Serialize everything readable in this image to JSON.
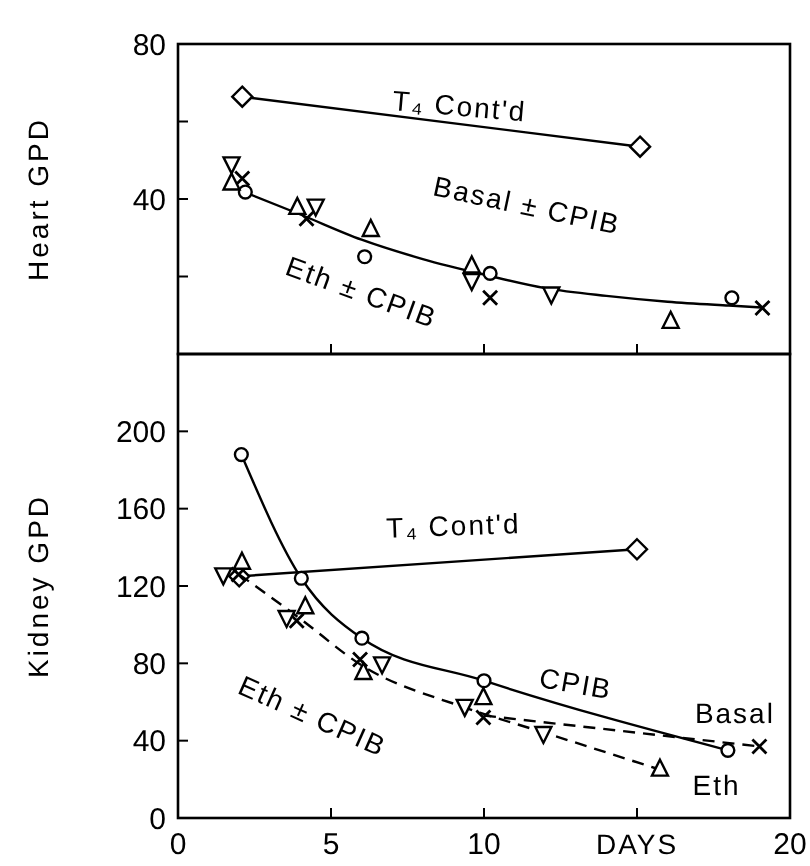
{
  "chart_data": [
    {
      "type": "line",
      "ylabel": "Heart GPD",
      "xlim": [
        0,
        20
      ],
      "xticks": [
        {
          "value": 0,
          "label": null
        },
        {
          "value": 5,
          "label": null
        },
        {
          "value": 10,
          "label": null
        },
        {
          "value": 15,
          "label": null
        },
        {
          "value": 20,
          "label": null
        }
      ],
      "ylim": [
        0,
        80
      ],
      "yticks": [
        {
          "value": 20,
          "label": null
        },
        40,
        {
          "value": 60,
          "label": null
        },
        80
      ],
      "tick_labels": "y",
      "grid": false,
      "series": [
        {
          "marker": "diamond",
          "line_style": "solid",
          "color": "#000000",
          "x": [
            2.1,
            15.1
          ],
          "values": [
            66.4,
            53.5
          ]
        },
        {
          "marker": "none",
          "line_style": "solid",
          "color": "#000000",
          "x": [
            2.1,
            4,
            6,
            8,
            10,
            12,
            14,
            16,
            18,
            19.1
          ],
          "values": [
            42,
            36,
            29.5,
            24.5,
            20.5,
            17,
            15,
            13.5,
            12.5,
            12
          ]
        },
        {
          "type": "scatter",
          "marker": "circle",
          "color": "#000000",
          "x": [
            2.2,
            6.1,
            10.2,
            18.1
          ],
          "values": [
            41.8,
            25.1,
            20.8,
            14.5
          ]
        },
        {
          "type": "scatter",
          "marker": "cross",
          "color": "#000000",
          "x": [
            2.1,
            4.2,
            10.2,
            19.1
          ],
          "values": [
            45.3,
            34.9,
            14.5,
            11.9
          ]
        },
        {
          "type": "scatter",
          "marker": "triangle",
          "color": "#000000",
          "x": [
            1.75,
            3.9,
            6.3,
            9.6,
            16.1
          ],
          "values": [
            44,
            37.7,
            32,
            22.6,
            8.3
          ]
        },
        {
          "type": "scatter",
          "marker": "triangle-down",
          "color": "#000000",
          "x": [
            1.75,
            4.5,
            9.6,
            12.2
          ],
          "values": [
            49.2,
            38.3,
            19.1,
            15.6
          ]
        }
      ],
      "annotations": [
        "T₄ Cont'd",
        "Basal ± CPIB",
        "Eth ± CPIB"
      ]
    },
    {
      "type": "line",
      "ylabel": "Kidney GPD",
      "xlabel": "DAYS",
      "xlim": [
        0,
        20
      ],
      "xticks": [
        0,
        5,
        10,
        {
          "value": 15,
          "label": null
        },
        20
      ],
      "ylim": [
        0,
        240
      ],
      "yticks": [
        0,
        40,
        80,
        120,
        160,
        200
      ],
      "grid": false,
      "series": [
        {
          "marker": "diamond",
          "line_style": "solid",
          "color": "#000000",
          "x": [
            2,
            15
          ],
          "values": [
            125,
            139
          ]
        },
        {
          "marker": "circle",
          "line_style": "solid",
          "color": "#000000",
          "x": [
            2.07,
            4.03,
            6.01,
            10,
            17.97
          ],
          "values": [
            188,
            124,
            93,
            71,
            35
          ]
        },
        {
          "marker": "none",
          "line_style": "dashed",
          "color": "#000000",
          "x": [
            2,
            4,
            6,
            9.4,
            12,
            15.75
          ],
          "values": [
            126,
            103,
            79,
            57,
            44,
            25
          ]
        },
        {
          "marker": "none",
          "line_style": "dashed",
          "color": "#000000",
          "x": [
            10,
            19
          ],
          "values": [
            53,
            37
          ]
        },
        {
          "type": "scatter",
          "marker": "cross",
          "color": "#000000",
          "x": [
            1.98,
            3.88,
            5.95,
            9.98,
            19
          ],
          "values": [
            126,
            102,
            82,
            52,
            37
          ]
        },
        {
          "type": "scatter",
          "marker": "triangle",
          "color": "#000000",
          "x": [
            2.09,
            4.16,
            6.06,
            9.98,
            15.75
          ],
          "values": [
            132,
            109,
            75,
            62,
            25
          ]
        },
        {
          "type": "scatter",
          "marker": "triangle-down",
          "color": "#000000",
          "x": [
            1.48,
            3.55,
            6.67,
            9.37,
            11.94
          ],
          "values": [
            126,
            104,
            80,
            58,
            44
          ]
        }
      ],
      "annotations": [
        "T₄ Cont'd",
        "CPIB",
        "Basal",
        "Eth",
        "Eth ± CPIB"
      ]
    }
  ]
}
